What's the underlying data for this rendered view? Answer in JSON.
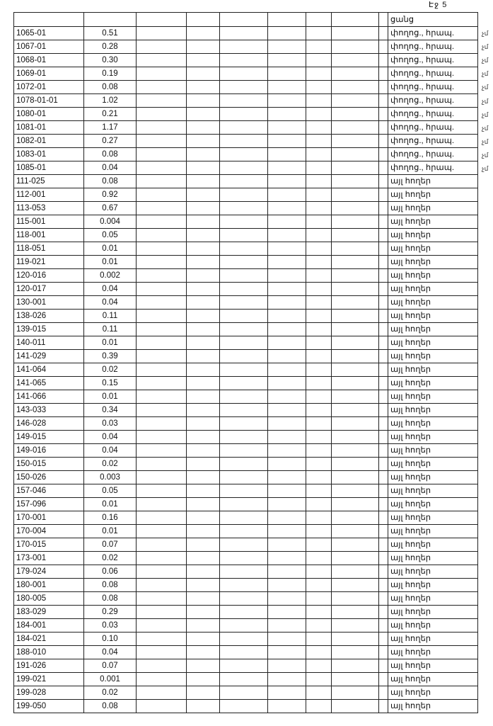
{
  "page_label": "Էջ 5",
  "header": {
    "type_column": "ցանց"
  },
  "rows": [
    {
      "code": "1065-01",
      "value": "0.51",
      "type": "փողոց., հրապ.",
      "note": "չմ"
    },
    {
      "code": "1067-01",
      "value": "0.28",
      "type": "փողոց., հրապ.",
      "note": "չմ"
    },
    {
      "code": "1068-01",
      "value": "0.30",
      "type": "փողոց., հրապ.",
      "note": "չմ"
    },
    {
      "code": "1069-01",
      "value": "0.19",
      "type": "փողոց., հրապ.",
      "note": "չմ"
    },
    {
      "code": "1072-01",
      "value": "0.08",
      "type": "փողոց., հրապ.",
      "note": "չմ"
    },
    {
      "code": "1078-01-01",
      "value": "1.02",
      "type": "փողոց., հրապ.",
      "note": "չմ"
    },
    {
      "code": "1080-01",
      "value": "0.21",
      "type": "փողոց., հրապ.",
      "note": "չմ"
    },
    {
      "code": "1081-01",
      "value": "1.17",
      "type": "փողոց., հրապ.",
      "note": "չմ"
    },
    {
      "code": "1082-01",
      "value": "0.27",
      "type": "փողոց., հրապ.",
      "note": "չմ"
    },
    {
      "code": "1083-01",
      "value": "0.08",
      "type": "փողոց., հրապ.",
      "note": "չմ"
    },
    {
      "code": "1085-01",
      "value": "0.04",
      "type": "փողոց., հրապ.",
      "note": "չմ"
    },
    {
      "code": "111-025",
      "value": "0.08",
      "type": "այլ հողեր"
    },
    {
      "code": "112-001",
      "value": "0.92",
      "type": "այլ հողեր"
    },
    {
      "code": "113-053",
      "value": "0.67",
      "type": "այլ հողեր"
    },
    {
      "code": "115-001",
      "value": "0.004",
      "type": "այլ հողեր"
    },
    {
      "code": "118-001",
      "value": "0.05",
      "type": "այլ հողեր"
    },
    {
      "code": "118-051",
      "value": "0.01",
      "type": "այլ հողեր"
    },
    {
      "code": "119-021",
      "value": "0.01",
      "type": "այլ հողեր"
    },
    {
      "code": "120-016",
      "value": "0.002",
      "type": "այլ հողեր"
    },
    {
      "code": "120-017",
      "value": "0.04",
      "type": "այլ հողեր"
    },
    {
      "code": "130-001",
      "value": "0.04",
      "type": "այլ հողեր"
    },
    {
      "code": "138-026",
      "value": "0.11",
      "type": "այլ հողեր"
    },
    {
      "code": "139-015",
      "value": "0.11",
      "type": "այլ հողեր"
    },
    {
      "code": "140-011",
      "value": "0.01",
      "type": "այլ հողեր"
    },
    {
      "code": "141-029",
      "value": "0.39",
      "type": "այլ հողեր"
    },
    {
      "code": "141-064",
      "value": "0.02",
      "type": "այլ հողեր"
    },
    {
      "code": "141-065",
      "value": "0.15",
      "type": "այլ հողեր"
    },
    {
      "code": "141-066",
      "value": "0.01",
      "type": "այլ հողեր"
    },
    {
      "code": "143-033",
      "value": "0.34",
      "type": "այլ հողեր"
    },
    {
      "code": "146-028",
      "value": "0.03",
      "type": "այլ հողեր"
    },
    {
      "code": "149-015",
      "value": "0.04",
      "type": "այլ հողեր"
    },
    {
      "code": "149-016",
      "value": "0.04",
      "type": "այլ հողեր"
    },
    {
      "code": "150-015",
      "value": "0.02",
      "type": "այլ հողեր"
    },
    {
      "code": "150-026",
      "value": "0.003",
      "type": "այլ հողեր"
    },
    {
      "code": "157-046",
      "value": "0.05",
      "type": "այլ հողեր"
    },
    {
      "code": "157-096",
      "value": "0.01",
      "type": "այլ հողեր"
    },
    {
      "code": "170-001",
      "value": "0.16",
      "type": "այլ հողեր"
    },
    {
      "code": "170-004",
      "value": "0.01",
      "type": "այլ հողեր"
    },
    {
      "code": "170-015",
      "value": "0.07",
      "type": "այլ հողեր"
    },
    {
      "code": "173-001",
      "value": "0.02",
      "type": "այլ հողեր"
    },
    {
      "code": "179-024",
      "value": "0.06",
      "type": "այլ հողեր"
    },
    {
      "code": "180-001",
      "value": "0.08",
      "type": "այլ հողեր"
    },
    {
      "code": "180-005",
      "value": "0.08",
      "type": "այլ հողեր"
    },
    {
      "code": "183-029",
      "value": "0.29",
      "type": "այլ հողեր"
    },
    {
      "code": "184-001",
      "value": "0.03",
      "type": "այլ հողեր"
    },
    {
      "code": "184-021",
      "value": "0.10",
      "type": "այլ հողեր"
    },
    {
      "code": "188-010",
      "value": "0.04",
      "type": "այլ հողեր"
    },
    {
      "code": "191-026",
      "value": "0.07",
      "type": "այլ հողեր"
    },
    {
      "code": "199-021",
      "value": "0.001",
      "type": "այլ հողեր"
    },
    {
      "code": "199-028",
      "value": "0.02",
      "type": "այլ հողեր"
    },
    {
      "code": "199-050",
      "value": "0.08",
      "type": "այլ հողեր"
    }
  ]
}
